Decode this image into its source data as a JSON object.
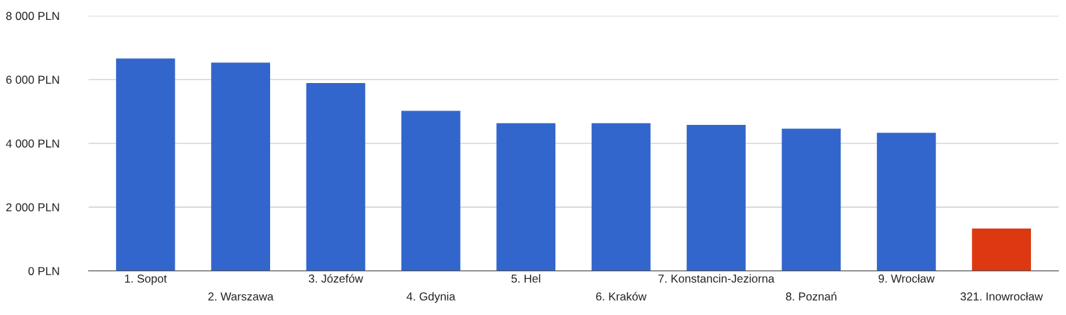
{
  "chart_data": {
    "type": "bar",
    "categories": [
      "1. Sopot",
      "2. Warszawa",
      "3. Józefów",
      "4. Gdynia",
      "5. Hel",
      "6. Kraków",
      "7. Konstancin-Jeziorna",
      "8. Poznań",
      "9. Wrocław",
      "321. Inowrocław"
    ],
    "values": [
      6660,
      6530,
      5890,
      5020,
      4630,
      4630,
      4580,
      4460,
      4330,
      1330
    ],
    "colors": [
      "#3366cc",
      "#3366cc",
      "#3366cc",
      "#3366cc",
      "#3366cc",
      "#3366cc",
      "#3366cc",
      "#3366cc",
      "#3366cc",
      "#dc3912"
    ],
    "ylim": [
      0,
      8000
    ],
    "yticks": [
      {
        "value": 0,
        "label": "0 PLN"
      },
      {
        "value": 2000,
        "label": "2 000 PLN"
      },
      {
        "value": 4000,
        "label": "4 000 PLN"
      },
      {
        "value": 6000,
        "label": "6 000 PLN"
      },
      {
        "value": 8000,
        "label": "8 000 PLN"
      }
    ],
    "grid": "y",
    "legend": false
  }
}
